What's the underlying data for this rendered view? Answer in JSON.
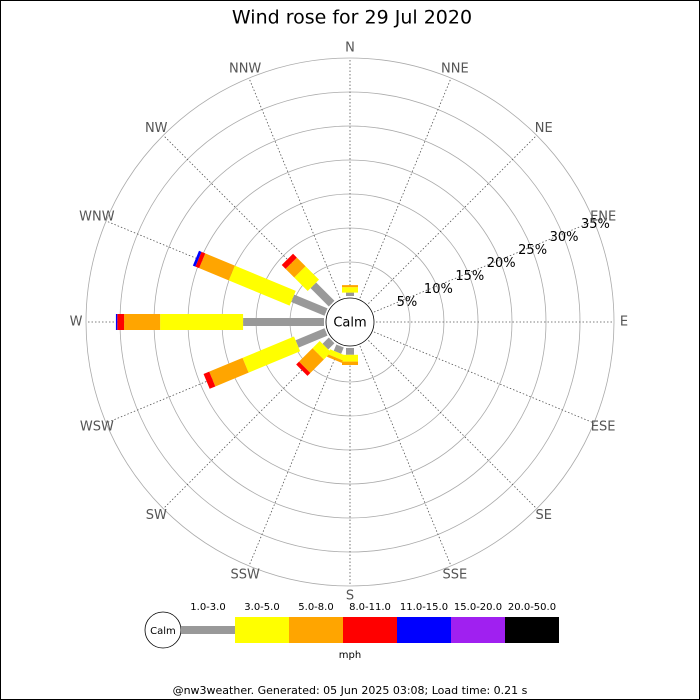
{
  "chart_data": {
    "type": "windrose",
    "title": "Wind rose for 29 Jul 2020",
    "categories": [
      "N",
      "NNE",
      "NE",
      "ENE",
      "E",
      "ESE",
      "SE",
      "SSE",
      "S",
      "SSW",
      "SW",
      "WSW",
      "W",
      "WNW",
      "NW",
      "NNW"
    ],
    "calm_label": "Calm",
    "unit_label": "mph",
    "footer": "@nw3weather. Generated: 05 Jun 2025 03:08; Load time: 0.21 s",
    "rlim": [
      0,
      35
    ],
    "rticks": [
      {
        "value": 5,
        "label": "5%"
      },
      {
        "value": 10,
        "label": "10%"
      },
      {
        "value": 15,
        "label": "15%"
      },
      {
        "value": 20,
        "label": "20%"
      },
      {
        "value": 25,
        "label": "25%"
      },
      {
        "value": 30,
        "label": "30%"
      },
      {
        "value": 35,
        "label": "35%"
      }
    ],
    "series": [
      {
        "name": "1.0-3.0",
        "color": "#999999",
        "values": [
          0.5,
          0,
          0,
          0,
          0,
          0,
          0,
          0,
          1.0,
          1.0,
          1.3,
          4.6,
          11.9,
          5.3,
          3.8,
          0
        ]
      },
      {
        "name": "3.0-5.0",
        "color": "#ffff00",
        "values": [
          0.8,
          0,
          0,
          0,
          0,
          0,
          0,
          0,
          1.0,
          0.8,
          1.5,
          8.2,
          12.2,
          9.7,
          2.8,
          0
        ]
      },
      {
        "name": "5.0-8.0",
        "color": "#ffa500",
        "values": [
          0.3,
          0,
          0,
          0,
          0,
          0,
          0,
          0,
          0.5,
          0.4,
          2.8,
          5.3,
          5.3,
          4.7,
          1.8,
          0
        ]
      },
      {
        "name": "8.0-11.0",
        "color": "#ff0000",
        "values": [
          0,
          0,
          0,
          0,
          0,
          0,
          0,
          0,
          0,
          0,
          0.6,
          0.9,
          1.0,
          0.6,
          0.8,
          0
        ]
      },
      {
        "name": "11.0-15.0",
        "color": "#0000ff",
        "values": [
          0,
          0,
          0,
          0,
          0,
          0,
          0,
          0,
          0,
          0,
          0,
          0,
          0.2,
          0.4,
          0,
          0
        ]
      },
      {
        "name": "15.0-20.0",
        "color": "#a020f0",
        "values": [
          0,
          0,
          0,
          0,
          0,
          0,
          0,
          0,
          0,
          0,
          0,
          0,
          0,
          0,
          0,
          0
        ]
      },
      {
        "name": "20.0-50.0",
        "color": "#000000",
        "values": [
          0,
          0,
          0,
          0,
          0,
          0,
          0,
          0,
          0,
          0,
          0,
          0,
          0,
          0,
          0,
          0
        ]
      }
    ]
  }
}
